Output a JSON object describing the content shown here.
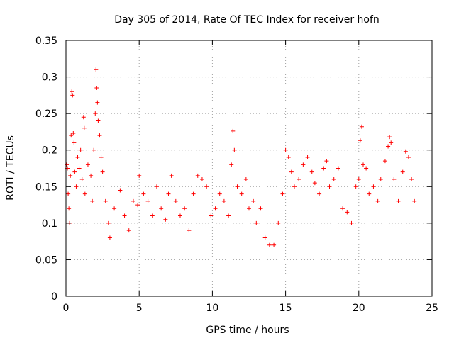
{
  "chart_data": {
    "type": "scatter",
    "title": "Day 305 of 2014, Rate Of TEC Index for receiver hofn",
    "xlabel": "GPS time / hours",
    "ylabel": "ROTI / TECUs",
    "xlim": [
      0,
      25
    ],
    "ylim": [
      0,
      0.35
    ],
    "x_ticks": [
      0,
      5,
      10,
      15,
      20,
      25
    ],
    "x_tick_labels": [
      "0",
      "5",
      "10",
      "15",
      "20",
      "25"
    ],
    "y_ticks": [
      0,
      0.05,
      0.1,
      0.15,
      0.2,
      0.25,
      0.3,
      0.35
    ],
    "y_tick_labels": [
      "0",
      "0.05",
      "0.1",
      "0.15",
      "0.2",
      "0.25",
      "0.3",
      "0.35"
    ],
    "grid": true,
    "marker": "plus",
    "series": [
      {
        "color": "#ff0000",
        "points": [
          [
            0.05,
            0.18
          ],
          [
            0.1,
            0.175
          ],
          [
            0.15,
            0.14
          ],
          [
            0.2,
            0.12
          ],
          [
            0.25,
            0.1
          ],
          [
            0.3,
            0.165
          ],
          [
            0.35,
            0.22
          ],
          [
            0.4,
            0.28
          ],
          [
            0.45,
            0.275
          ],
          [
            0.5,
            0.223
          ],
          [
            0.55,
            0.21
          ],
          [
            0.6,
            0.17
          ],
          [
            0.7,
            0.15
          ],
          [
            0.8,
            0.19
          ],
          [
            0.9,
            0.175
          ],
          [
            1.0,
            0.2
          ],
          [
            1.1,
            0.16
          ],
          [
            1.2,
            0.245
          ],
          [
            1.25,
            0.23
          ],
          [
            1.3,
            0.14
          ],
          [
            1.5,
            0.18
          ],
          [
            1.7,
            0.165
          ],
          [
            1.8,
            0.13
          ],
          [
            1.9,
            0.2
          ],
          [
            2.0,
            0.25
          ],
          [
            2.05,
            0.31
          ],
          [
            2.1,
            0.285
          ],
          [
            2.15,
            0.265
          ],
          [
            2.2,
            0.24
          ],
          [
            2.3,
            0.22
          ],
          [
            2.4,
            0.19
          ],
          [
            2.5,
            0.17
          ],
          [
            2.7,
            0.13
          ],
          [
            2.9,
            0.1
          ],
          [
            3.0,
            0.08
          ],
          [
            3.3,
            0.12
          ],
          [
            3.7,
            0.145
          ],
          [
            4.0,
            0.11
          ],
          [
            4.3,
            0.09
          ],
          [
            4.6,
            0.13
          ],
          [
            4.9,
            0.125
          ],
          [
            5.0,
            0.165
          ],
          [
            5.3,
            0.14
          ],
          [
            5.6,
            0.13
          ],
          [
            5.9,
            0.11
          ],
          [
            6.2,
            0.15
          ],
          [
            6.5,
            0.12
          ],
          [
            6.8,
            0.105
          ],
          [
            7.0,
            0.14
          ],
          [
            7.2,
            0.165
          ],
          [
            7.5,
            0.13
          ],
          [
            7.8,
            0.11
          ],
          [
            8.1,
            0.12
          ],
          [
            8.4,
            0.09
          ],
          [
            8.7,
            0.14
          ],
          [
            9.0,
            0.165
          ],
          [
            9.3,
            0.16
          ],
          [
            9.6,
            0.15
          ],
          [
            9.9,
            0.11
          ],
          [
            10.2,
            0.12
          ],
          [
            10.5,
            0.14
          ],
          [
            10.8,
            0.13
          ],
          [
            11.1,
            0.11
          ],
          [
            11.3,
            0.18
          ],
          [
            11.4,
            0.226
          ],
          [
            11.5,
            0.2
          ],
          [
            11.7,
            0.15
          ],
          [
            12.0,
            0.14
          ],
          [
            12.3,
            0.16
          ],
          [
            12.5,
            0.12
          ],
          [
            12.8,
            0.13
          ],
          [
            13.0,
            0.1
          ],
          [
            13.3,
            0.12
          ],
          [
            13.6,
            0.08
          ],
          [
            13.9,
            0.07
          ],
          [
            14.2,
            0.07
          ],
          [
            14.5,
            0.1
          ],
          [
            14.8,
            0.14
          ],
          [
            15.0,
            0.2
          ],
          [
            15.2,
            0.19
          ],
          [
            15.4,
            0.17
          ],
          [
            15.6,
            0.15
          ],
          [
            15.9,
            0.16
          ],
          [
            16.2,
            0.18
          ],
          [
            16.5,
            0.19
          ],
          [
            16.8,
            0.17
          ],
          [
            17.0,
            0.155
          ],
          [
            17.3,
            0.14
          ],
          [
            17.6,
            0.175
          ],
          [
            17.8,
            0.185
          ],
          [
            18.0,
            0.15
          ],
          [
            18.3,
            0.16
          ],
          [
            18.6,
            0.175
          ],
          [
            18.9,
            0.12
          ],
          [
            19.2,
            0.115
          ],
          [
            19.5,
            0.1
          ],
          [
            19.8,
            0.15
          ],
          [
            20.0,
            0.16
          ],
          [
            20.1,
            0.213
          ],
          [
            20.2,
            0.232
          ],
          [
            20.3,
            0.18
          ],
          [
            20.5,
            0.175
          ],
          [
            20.7,
            0.14
          ],
          [
            21.0,
            0.15
          ],
          [
            21.3,
            0.13
          ],
          [
            21.5,
            0.16
          ],
          [
            21.8,
            0.185
          ],
          [
            22.0,
            0.205
          ],
          [
            22.1,
            0.218
          ],
          [
            22.2,
            0.21
          ],
          [
            22.4,
            0.16
          ],
          [
            22.7,
            0.13
          ],
          [
            23.0,
            0.17
          ],
          [
            23.2,
            0.198
          ],
          [
            23.4,
            0.19
          ],
          [
            23.6,
            0.16
          ],
          [
            23.8,
            0.13
          ]
        ]
      }
    ]
  }
}
